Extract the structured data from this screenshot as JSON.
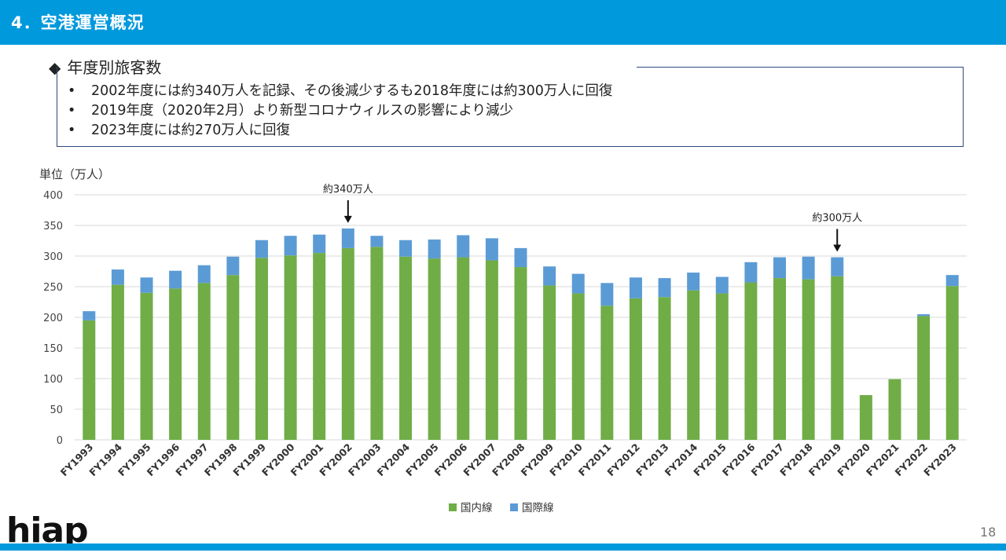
{
  "header": {
    "title": "4．空港運営概況"
  },
  "section": {
    "marker": "◆",
    "title": "年度別旅客数"
  },
  "bullets": [
    "2002年度には約340万人を記録、その後減少するも2018年度には約300万人に回復",
    "2019年度（2020年2月）より新型コロナウィルスの影響により減少",
    "2023年度には約270万人に回復"
  ],
  "footer": {
    "logo": "hiap",
    "page_number": "18"
  },
  "chart_data": {
    "type": "bar",
    "stacked": true,
    "ylabel": "単位（万人）",
    "ylim": [
      0,
      400
    ],
    "yticks": [
      0,
      50,
      100,
      150,
      200,
      250,
      300,
      350,
      400
    ],
    "grid": true,
    "legend": "bottom",
    "categories": [
      "FY1993",
      "FY1994",
      "FY1995",
      "FY1996",
      "FY1997",
      "FY1998",
      "FY1999",
      "FY2000",
      "FY2001",
      "FY2002",
      "FY2003",
      "FY2004",
      "FY2005",
      "FY2006",
      "FY2007",
      "FY2008",
      "FY2009",
      "FY2010",
      "FY2011",
      "FY2012",
      "FY2013",
      "FY2014",
      "FY2015",
      "FY2016",
      "FY2017",
      "FY2018",
      "FY2019",
      "FY2020",
      "FY2021",
      "FY2022",
      "FY2023"
    ],
    "series": [
      {
        "name": "国内線",
        "color": "#70ad47",
        "values": [
          195,
          253,
          240,
          247,
          256,
          269,
          297,
          301,
          305,
          313,
          315,
          299,
          296,
          298,
          293,
          282,
          252,
          239,
          219,
          231,
          233,
          244,
          239,
          257,
          264,
          262,
          267,
          73,
          99,
          202,
          251
        ]
      },
      {
        "name": "国際線",
        "color": "#5b9bd5",
        "values": [
          15,
          25,
          25,
          29,
          29,
          30,
          29,
          32,
          30,
          32,
          18,
          27,
          31,
          36,
          36,
          31,
          31,
          32,
          37,
          34,
          31,
          29,
          27,
          33,
          34,
          37,
          31,
          0,
          0,
          3,
          18
        ]
      }
    ],
    "annotations": [
      {
        "text": "約340万人",
        "category": "FY2002"
      },
      {
        "text": "約300万人",
        "category": "FY2019"
      }
    ]
  }
}
